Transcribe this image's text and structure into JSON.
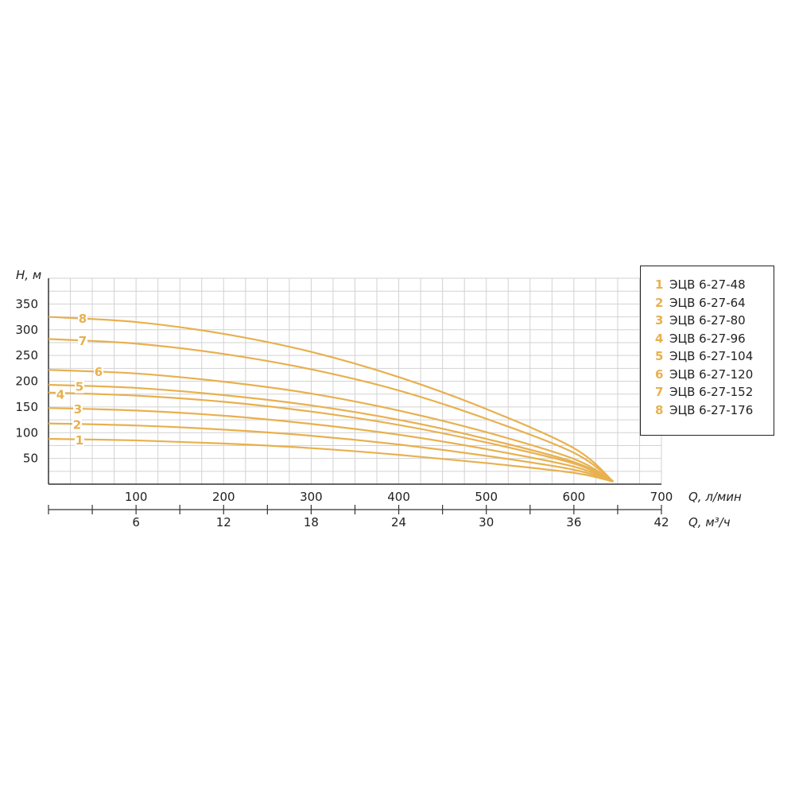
{
  "chart_data": {
    "type": "line",
    "ylabel": "Н, м",
    "xlabel": "Q, л/мин",
    "xlabel_secondary": "Q, м³/ч",
    "ylim": [
      0,
      400
    ],
    "xlim": [
      0,
      700
    ],
    "yticks": [
      "50",
      "100",
      "150",
      "200",
      "250",
      "300",
      "350"
    ],
    "xticks": [
      "100",
      "200",
      "300",
      "400",
      "500",
      "600",
      "700"
    ],
    "xticks_secondary": [
      "6",
      "12",
      "18",
      "24",
      "30",
      "36",
      "42"
    ],
    "grid": true,
    "legend_position": "right",
    "curve_color": "#e8b04f",
    "series": [
      {
        "number": "1",
        "name": "ЭЦВ 6-27-48",
        "x": [
          0,
          100,
          200,
          300,
          400,
          500,
          600,
          645
        ],
        "y": [
          88,
          85,
          79,
          70,
          57,
          41,
          22,
          5
        ]
      },
      {
        "number": "2",
        "name": "ЭЦВ 6-27-64",
        "x": [
          0,
          100,
          200,
          300,
          400,
          500,
          600,
          645
        ],
        "y": [
          118,
          114,
          106,
          94,
          77,
          55,
          28,
          5
        ]
      },
      {
        "number": "3",
        "name": "ЭЦВ 6-27-80",
        "x": [
          0,
          100,
          200,
          300,
          400,
          500,
          600,
          645
        ],
        "y": [
          148,
          143,
          133,
          117,
          96,
          68,
          34,
          5
        ]
      },
      {
        "number": "4",
        "name": "ЭЦВ 6-27-96",
        "x": [
          0,
          100,
          200,
          300,
          400,
          500,
          600,
          645
        ],
        "y": [
          178,
          172,
          160,
          141,
          115,
          81,
          40,
          5
        ]
      },
      {
        "number": "5",
        "name": "ЭЦВ 6-27-104",
        "x": [
          0,
          100,
          200,
          300,
          400,
          500,
          600,
          645
        ],
        "y": [
          193,
          187,
          173,
          153,
          125,
          88,
          43,
          5
        ]
      },
      {
        "number": "6",
        "name": "ЭЦВ 6-27-120",
        "x": [
          0,
          100,
          200,
          300,
          400,
          500,
          600,
          645
        ],
        "y": [
          222,
          215,
          199,
          176,
          143,
          101,
          49,
          5
        ]
      },
      {
        "number": "7",
        "name": "ЭЦВ 6-27-152",
        "x": [
          0,
          100,
          200,
          300,
          400,
          500,
          600,
          645
        ],
        "y": [
          282,
          273,
          253,
          223,
          182,
          127,
          61,
          5
        ]
      },
      {
        "number": "8",
        "name": "ЭЦВ 6-27-176",
        "x": [
          0,
          100,
          200,
          300,
          400,
          500,
          600,
          645
        ],
        "y": [
          325,
          315,
          292,
          257,
          208,
          146,
          70,
          5
        ]
      }
    ]
  }
}
